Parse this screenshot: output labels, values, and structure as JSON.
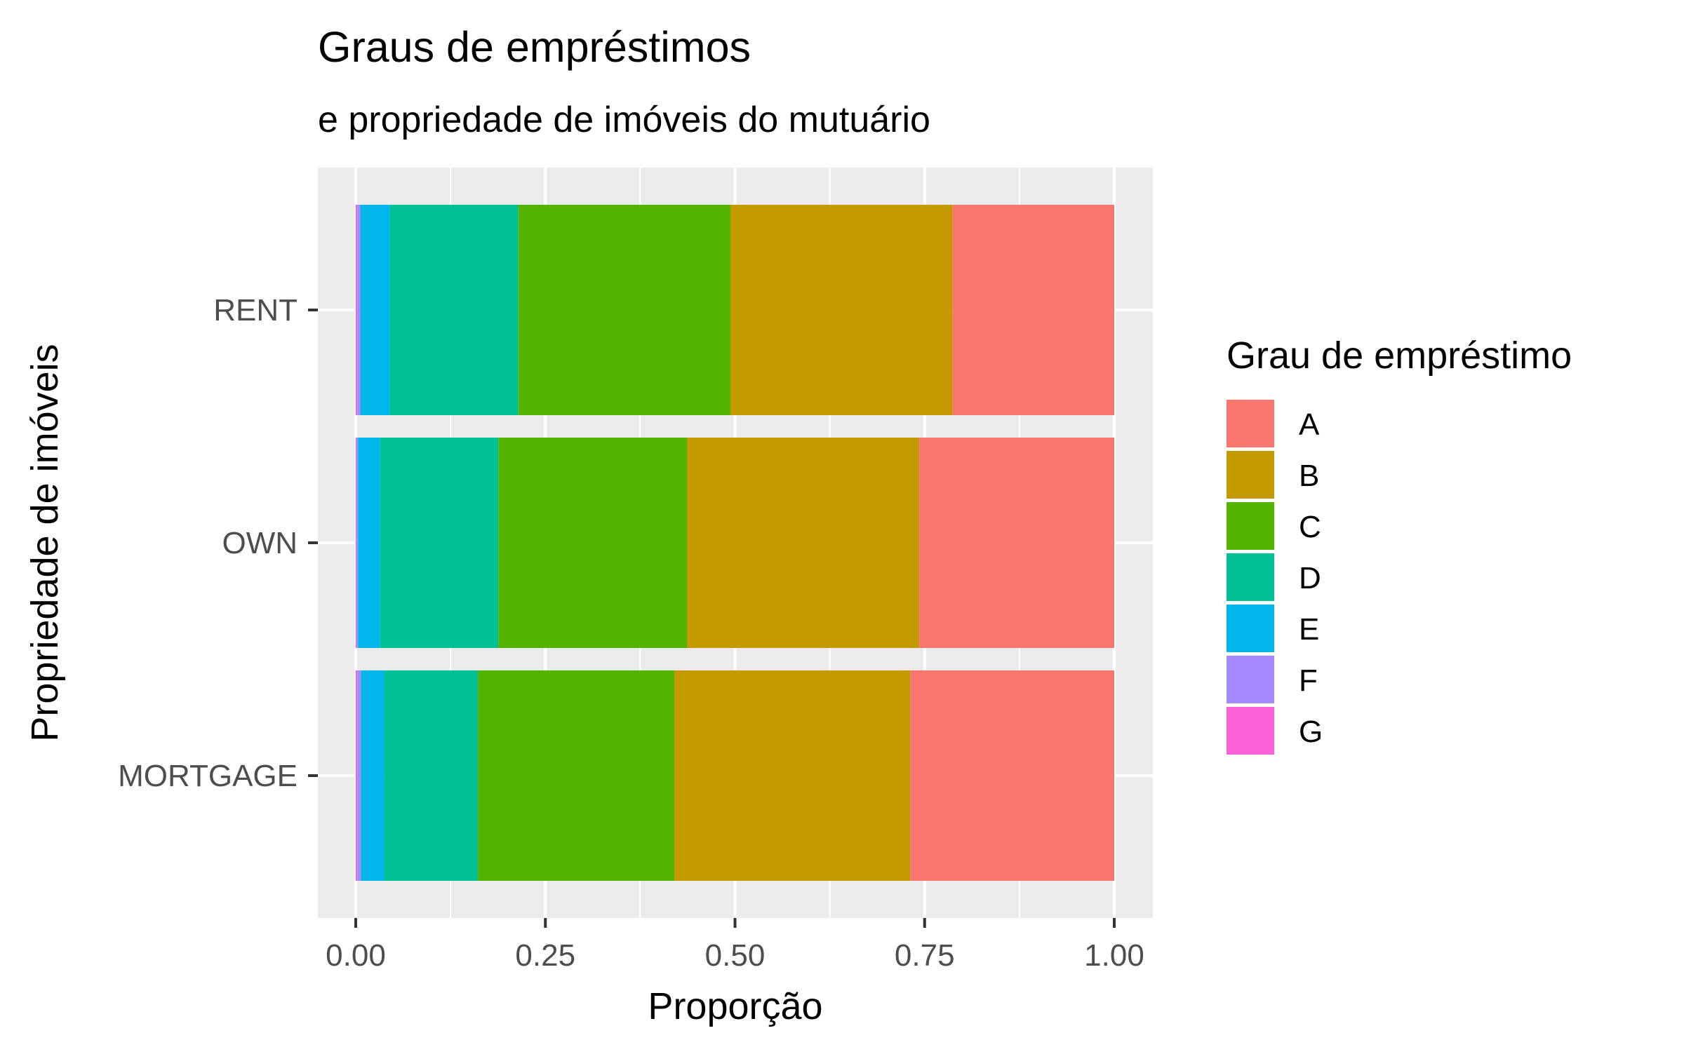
{
  "chart_data": {
    "type": "bar",
    "orientation": "horizontal",
    "stacked": true,
    "title": "Graus de empréstimos",
    "subtitle": "e propriedade de imóveis do mutuário",
    "xlabel": "Proporção",
    "ylabel": "Propriedade de imóveis",
    "xlim": [
      0,
      1
    ],
    "x_ticks": [
      "0.00",
      "0.25",
      "0.50",
      "0.75",
      "1.00"
    ],
    "categories": [
      "RENT",
      "OWN",
      "MORTGAGE"
    ],
    "legend_title": "Grau de empréstimo",
    "legend_position": "right",
    "grid": true,
    "series": [
      {
        "name": "A",
        "color": "#F8766D",
        "values": [
          0.213,
          0.257,
          0.269
        ]
      },
      {
        "name": "B",
        "color": "#C49A00",
        "values": [
          0.293,
          0.306,
          0.311
        ]
      },
      {
        "name": "C",
        "color": "#53B400",
        "values": [
          0.28,
          0.249,
          0.259
        ]
      },
      {
        "name": "D",
        "color": "#00C094",
        "values": [
          0.169,
          0.156,
          0.123
        ]
      },
      {
        "name": "E",
        "color": "#00B6EB",
        "values": [
          0.039,
          0.029,
          0.031
        ]
      },
      {
        "name": "F",
        "color": "#A58AFF",
        "values": [
          0.004,
          0.002,
          0.005
        ]
      },
      {
        "name": "G",
        "color": "#FB61D7",
        "values": [
          0.002,
          0.001,
          0.002
        ]
      }
    ]
  }
}
